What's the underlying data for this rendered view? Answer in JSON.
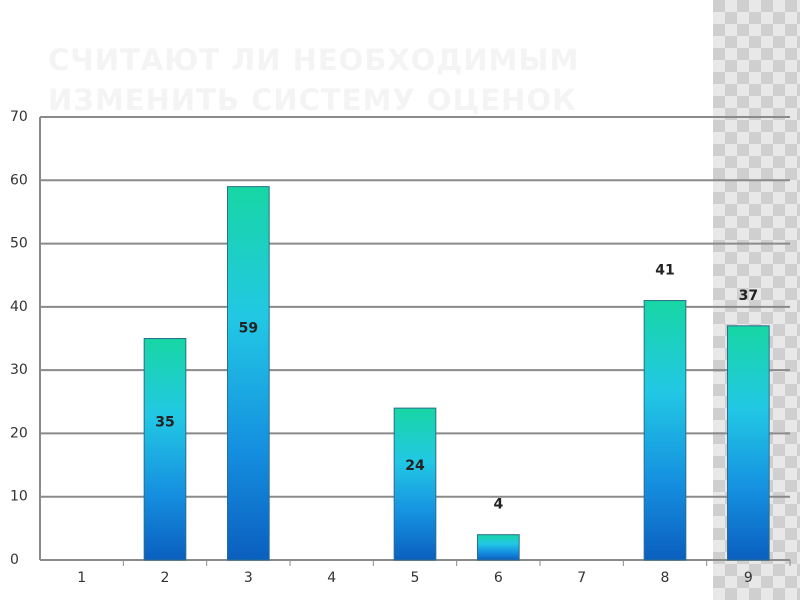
{
  "chart_data": {
    "type": "bar",
    "title": "СЧИТАЮТ ЛИ НЕОБХОДИМЫМ ИЗМЕНИТЬ СИСТЕМУ ОЦЕНОК",
    "categories": [
      "1",
      "2",
      "3",
      "4",
      "5",
      "6",
      "7",
      "8",
      "9"
    ],
    "values": [
      null,
      35,
      59,
      null,
      24,
      4,
      null,
      41,
      37
    ],
    "ylim": [
      0,
      70
    ],
    "yticks": [
      0,
      10,
      20,
      30,
      40,
      50,
      60,
      70
    ],
    "grid": true,
    "color": "#1aa6e0"
  }
}
